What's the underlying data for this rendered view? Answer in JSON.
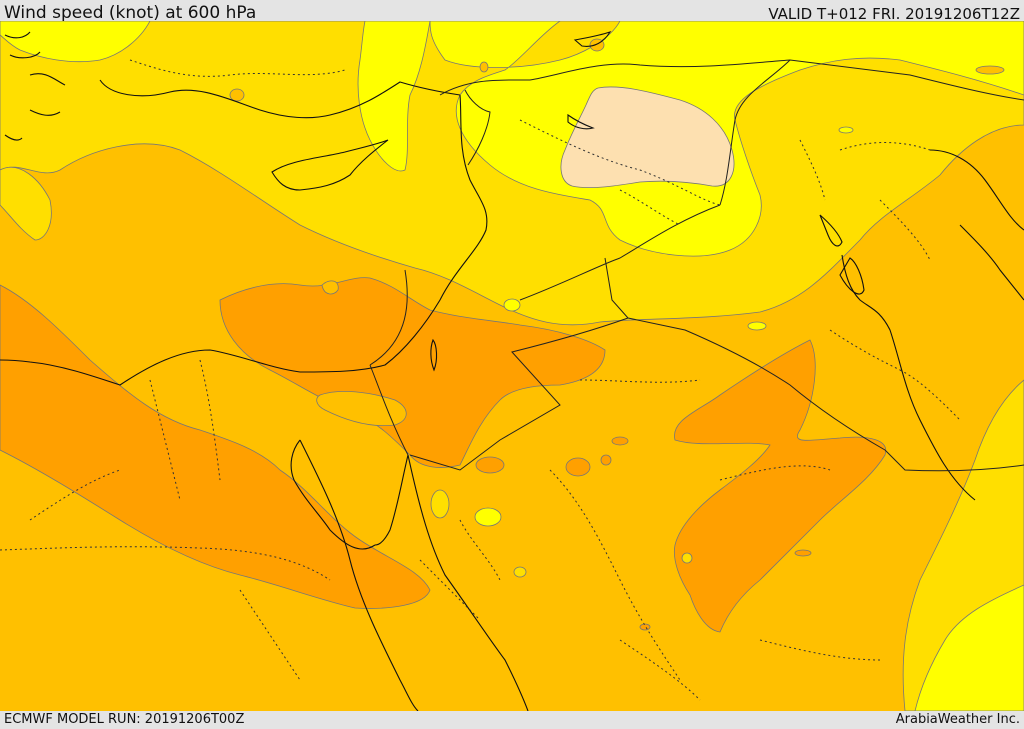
{
  "header": {
    "title": "Wind speed (knot) at 600 hPa",
    "valid": "VALID T+012 FRI. 20191206T12Z"
  },
  "footer": {
    "model_run": "ECMWF MODEL RUN: 20191206T00Z",
    "credit": "ArabiaWeather Inc."
  },
  "colors": {
    "band_lightest": "#fde0b0",
    "band_1": "#ffff00",
    "band_2": "#ffdf00",
    "band_3": "#ffc000",
    "band_4": "#ffa000",
    "contour_line": "#777777",
    "coastline": "#111111",
    "border": "#222222"
  }
}
